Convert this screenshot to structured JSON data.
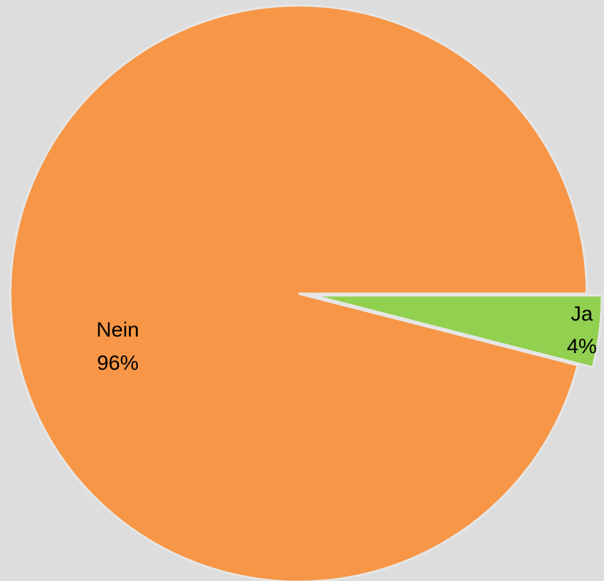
{
  "chart_data": {
    "type": "pie",
    "categories": [
      "Ja",
      "Nein"
    ],
    "values": [
      4,
      96
    ],
    "value_labels": [
      "4%",
      "96%"
    ],
    "colors": [
      "#92d050",
      "#f79646"
    ],
    "start_angle": 0,
    "direction": "clockwise"
  }
}
